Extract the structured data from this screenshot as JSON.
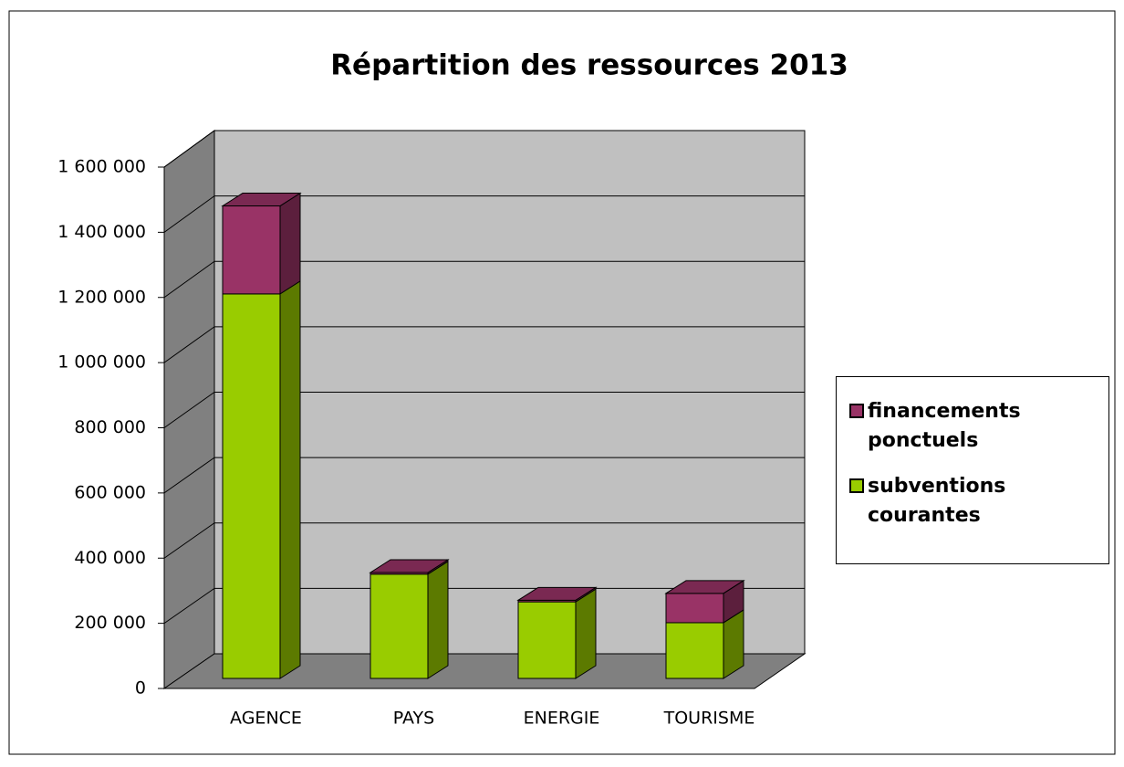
{
  "chart_data": {
    "type": "bar3d_stacked",
    "title": "Répartition des ressources 2013",
    "categories": [
      "AGENCE",
      "PAYS",
      "ENERGIE",
      "TOURISME"
    ],
    "series": [
      {
        "name": "subventions courantes",
        "color": "#99cc00",
        "values": [
          1180000,
          320000,
          235000,
          171000
        ]
      },
      {
        "name": "financements ponctuels",
        "color": "#993366",
        "values": [
          270000,
          5000,
          5000,
          90000
        ]
      }
    ],
    "ylim": [
      0,
      1600000
    ],
    "yticks": [
      0,
      {
        "value": 200000,
        "label": "200 000"
      },
      {
        "value": 400000,
        "label": "400 000"
      },
      {
        "value": 600000,
        "label": "600 000"
      },
      {
        "value": 800000,
        "label": "800 000"
      },
      {
        "value": 1000000,
        "label": "1 000 000"
      },
      {
        "value": 1200000,
        "label": "1 200 000"
      },
      {
        "value": 1400000,
        "label": "1 400 000"
      },
      {
        "value": 1600000,
        "label": "1 600 000"
      }
    ],
    "grid": true,
    "legend": "right"
  }
}
